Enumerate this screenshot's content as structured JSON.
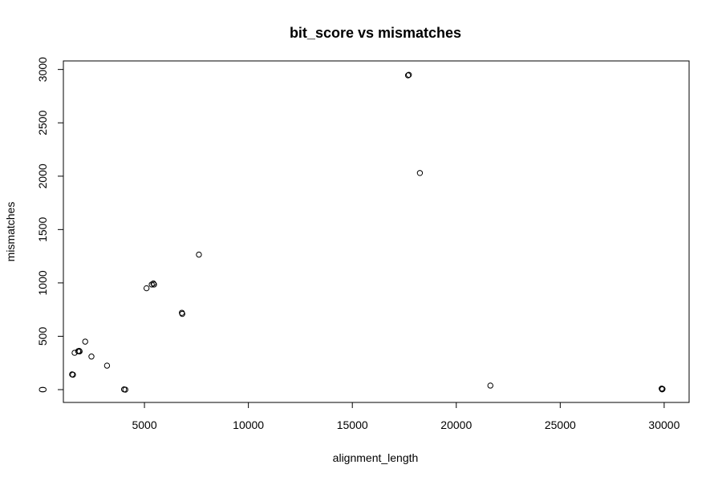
{
  "chart_data": {
    "type": "scatter",
    "title": "bit_score vs mismatches",
    "xlabel": "alignment_length",
    "ylabel": "mismatches",
    "xlim": [
      1100,
      31200
    ],
    "ylim": [
      -120,
      3080
    ],
    "xticks": [
      5000,
      10000,
      15000,
      20000,
      25000,
      30000
    ],
    "yticks": [
      0,
      500,
      1000,
      1500,
      2000,
      2500,
      3000
    ],
    "grid": false,
    "legend": "none",
    "marker": "open-circle",
    "points": [
      {
        "x": 1520,
        "y": 143
      },
      {
        "x": 1560,
        "y": 140
      },
      {
        "x": 1640,
        "y": 345
      },
      {
        "x": 1810,
        "y": 360
      },
      {
        "x": 1860,
        "y": 363
      },
      {
        "x": 1880,
        "y": 358
      },
      {
        "x": 2150,
        "y": 450
      },
      {
        "x": 2450,
        "y": 310
      },
      {
        "x": 3200,
        "y": 225
      },
      {
        "x": 4020,
        "y": 2
      },
      {
        "x": 4080,
        "y": 0
      },
      {
        "x": 5100,
        "y": 950
      },
      {
        "x": 5350,
        "y": 985
      },
      {
        "x": 5430,
        "y": 995
      },
      {
        "x": 5460,
        "y": 985
      },
      {
        "x": 6800,
        "y": 720
      },
      {
        "x": 6820,
        "y": 710
      },
      {
        "x": 7620,
        "y": 1265
      },
      {
        "x": 17680,
        "y": 2945
      },
      {
        "x": 17720,
        "y": 2950
      },
      {
        "x": 18250,
        "y": 2030
      },
      {
        "x": 21640,
        "y": 38
      },
      {
        "x": 29880,
        "y": 10
      },
      {
        "x": 29900,
        "y": 3
      },
      {
        "x": 29920,
        "y": 6
      }
    ]
  }
}
